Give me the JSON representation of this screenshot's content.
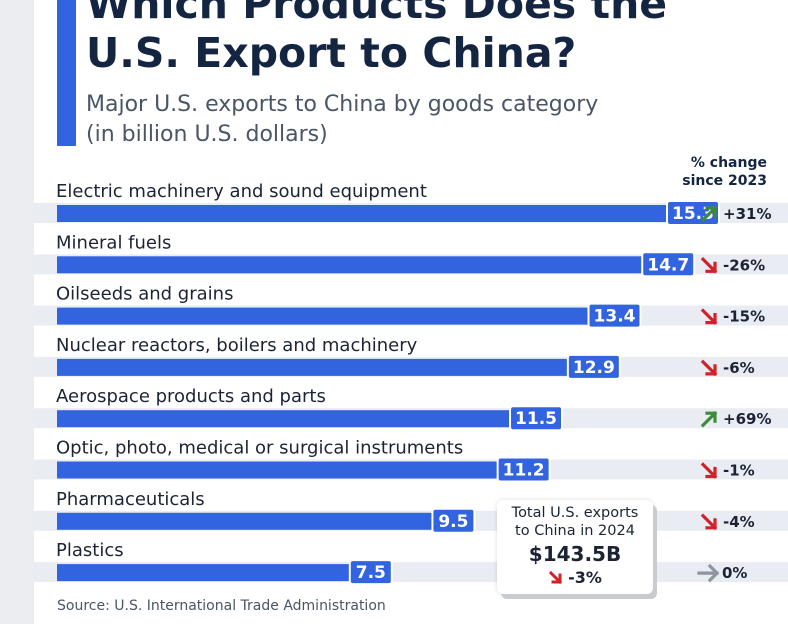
{
  "title": "Which Products Does the U.S. Export to China?",
  "subtitle_line1": "Major U.S. exports to China by goods category",
  "subtitle_line2": "(in billion U.S. dollars)",
  "column_header_line1": "% change",
  "column_header_line2": "since 2023",
  "total_box": {
    "line1": "Total U.S. exports",
    "line2": "to China in 2024",
    "value": "$143.5B",
    "change": "-3%",
    "change_icon": "arrow-down-right-icon"
  },
  "source": "Source: U.S. International Trade Administration",
  "colors": {
    "bar": "#3364e0",
    "track": "#e9ecf2",
    "up": "#3d8a3a",
    "down": "#d1222b",
    "neutral": "#8d959f",
    "title": "#142542"
  },
  "chart_data": {
    "type": "bar",
    "orientation": "horizontal",
    "categories": [
      "Electric machinery and sound equipment",
      "Mineral fuels",
      "Oilseeds and grains",
      "Nuclear reactors, boilers and machinery",
      "Aerospace products and parts",
      "Optic, photo, medical or surgical instruments",
      "Pharmaceuticals",
      "Plastics"
    ],
    "values": [
      15.3,
      14.7,
      13.4,
      12.9,
      11.5,
      11.2,
      9.5,
      7.5
    ],
    "value_labels": [
      "15.3",
      "14.7",
      "13.4",
      "12.9",
      "11.5",
      "11.2",
      "9.5",
      "7.5"
    ],
    "change_labels": [
      "+31%",
      "-26%",
      "-15%",
      "-6%",
      "+69%",
      "-1%",
      "-4%",
      "0%"
    ],
    "change_direction": [
      "up",
      "down",
      "down",
      "down",
      "up",
      "down",
      "down",
      "flat"
    ],
    "xlim": [
      0,
      15.3
    ]
  }
}
